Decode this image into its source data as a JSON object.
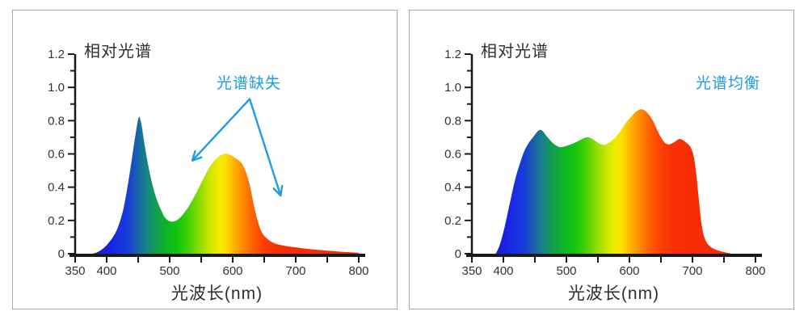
{
  "styles": {
    "annotation_color": "#1e9cea",
    "axis_color": "#1a1a1a",
    "tick_text_color": "#333333",
    "title_text_color": "#2e2e2e",
    "panel_border_color": "#a8a8a8",
    "background_color": "#ffffff"
  },
  "spectrum_gradient": [
    {
      "wl": 380,
      "color": "#2018c8"
    },
    {
      "wl": 410,
      "color": "#1826e6"
    },
    {
      "wl": 435,
      "color": "#1840d8"
    },
    {
      "wl": 452,
      "color": "#1a6a9c"
    },
    {
      "wl": 462,
      "color": "#16818c"
    },
    {
      "wl": 472,
      "color": "#159462"
    },
    {
      "wl": 485,
      "color": "#10a83c"
    },
    {
      "wl": 498,
      "color": "#0db81e"
    },
    {
      "wl": 512,
      "color": "#12c410"
    },
    {
      "wl": 526,
      "color": "#35ce06"
    },
    {
      "wl": 540,
      "color": "#6ed802"
    },
    {
      "wl": 554,
      "color": "#a8e000"
    },
    {
      "wl": 566,
      "color": "#d2e800"
    },
    {
      "wl": 578,
      "color": "#f0ec00"
    },
    {
      "wl": 588,
      "color": "#ffe000"
    },
    {
      "wl": 598,
      "color": "#ffc000"
    },
    {
      "wl": 608,
      "color": "#ffa000"
    },
    {
      "wl": 618,
      "color": "#ff8600"
    },
    {
      "wl": 630,
      "color": "#ff6600"
    },
    {
      "wl": 642,
      "color": "#ff4c00"
    },
    {
      "wl": 655,
      "color": "#fb3a02"
    },
    {
      "wl": 672,
      "color": "#f83004"
    },
    {
      "wl": 700,
      "color": "#f62c05"
    },
    {
      "wl": 800,
      "color": "#f52b06"
    }
  ],
  "chart_data": [
    {
      "type": "area",
      "title": "相对光谱",
      "xlabel": "光波长(nm)",
      "ylabel": "",
      "annotation": "光谱缺失",
      "xlim": [
        350,
        800
      ],
      "ylim": [
        0,
        1.2
      ],
      "xticks": [
        350,
        400,
        450,
        500,
        550,
        600,
        650,
        700,
        750,
        800
      ],
      "xtick_labels": [
        "350",
        "400",
        "",
        "500",
        "",
        "600",
        "",
        "700",
        "",
        "800"
      ],
      "ytick_values": [
        0,
        0.1,
        0.2,
        0.3,
        0.4,
        0.5,
        0.6,
        0.7,
        0.8,
        0.9,
        1.0,
        1.1,
        1.2
      ],
      "ytick_labels": [
        "0",
        "",
        "0.2",
        "",
        "0.4",
        "",
        "0.6",
        "",
        "0.8",
        "",
        "1.0",
        "",
        "1.2"
      ],
      "grid": false,
      "arrows": [
        {
          "from": [
            627,
            0.93
          ],
          "to": [
            536,
            0.56
          ]
        },
        {
          "from": [
            627,
            0.93
          ],
          "to": [
            676,
            0.35
          ]
        }
      ],
      "points": [
        [
          378,
          0
        ],
        [
          386,
          0.01
        ],
        [
          394,
          0.03
        ],
        [
          402,
          0.06
        ],
        [
          410,
          0.1
        ],
        [
          418,
          0.16
        ],
        [
          426,
          0.26
        ],
        [
          433,
          0.4
        ],
        [
          440,
          0.57
        ],
        [
          446,
          0.72
        ],
        [
          451,
          0.82
        ],
        [
          455,
          0.78
        ],
        [
          460,
          0.66
        ],
        [
          466,
          0.53
        ],
        [
          473,
          0.41
        ],
        [
          480,
          0.32
        ],
        [
          488,
          0.25
        ],
        [
          492,
          0.22
        ],
        [
          500,
          0.195
        ],
        [
          508,
          0.196
        ],
        [
          516,
          0.215
        ],
        [
          524,
          0.25
        ],
        [
          532,
          0.295
        ],
        [
          540,
          0.35
        ],
        [
          548,
          0.41
        ],
        [
          556,
          0.47
        ],
        [
          564,
          0.525
        ],
        [
          572,
          0.565
        ],
        [
          580,
          0.59
        ],
        [
          586,
          0.6
        ],
        [
          592,
          0.6
        ],
        [
          600,
          0.585
        ],
        [
          608,
          0.565
        ],
        [
          614,
          0.545
        ],
        [
          620,
          0.5
        ],
        [
          626,
          0.43
        ],
        [
          631,
          0.34
        ],
        [
          636,
          0.25
        ],
        [
          641,
          0.18
        ],
        [
          646,
          0.13
        ],
        [
          652,
          0.1
        ],
        [
          660,
          0.075
        ],
        [
          670,
          0.058
        ],
        [
          682,
          0.048
        ],
        [
          696,
          0.04
        ],
        [
          712,
          0.032
        ],
        [
          730,
          0.025
        ],
        [
          750,
          0.018
        ],
        [
          770,
          0.012
        ],
        [
          800,
          0.006
        ]
      ]
    },
    {
      "type": "area",
      "title": "相对光谱",
      "xlabel": "光波长(nm)",
      "ylabel": "",
      "annotation": "光谱均衡",
      "xlim": [
        350,
        800
      ],
      "ylim": [
        0,
        1.2
      ],
      "xticks": [
        350,
        400,
        450,
        500,
        550,
        600,
        650,
        700,
        750,
        800
      ],
      "xtick_labels": [
        "350",
        "400",
        "",
        "500",
        "",
        "600",
        "",
        "700",
        "",
        "800"
      ],
      "ytick_values": [
        0,
        0.1,
        0.2,
        0.3,
        0.4,
        0.5,
        0.6,
        0.7,
        0.8,
        0.9,
        1.0,
        1.1,
        1.2
      ],
      "ytick_labels": [
        "0",
        "",
        "0.2",
        "",
        "0.4",
        "",
        "0.6",
        "",
        "0.8",
        "",
        "1.0",
        "",
        "1.2"
      ],
      "grid": false,
      "arrows": [],
      "points": [
        [
          388,
          0
        ],
        [
          394,
          0.05
        ],
        [
          400,
          0.13
        ],
        [
          406,
          0.23
        ],
        [
          412,
          0.335
        ],
        [
          419,
          0.45
        ],
        [
          426,
          0.54
        ],
        [
          433,
          0.615
        ],
        [
          440,
          0.665
        ],
        [
          447,
          0.7
        ],
        [
          453,
          0.73
        ],
        [
          458,
          0.745
        ],
        [
          463,
          0.735
        ],
        [
          469,
          0.705
        ],
        [
          476,
          0.675
        ],
        [
          483,
          0.652
        ],
        [
          490,
          0.641
        ],
        [
          497,
          0.645
        ],
        [
          505,
          0.655
        ],
        [
          513,
          0.667
        ],
        [
          521,
          0.682
        ],
        [
          528,
          0.695
        ],
        [
          534,
          0.7
        ],
        [
          540,
          0.693
        ],
        [
          547,
          0.675
        ],
        [
          553,
          0.66
        ],
        [
          559,
          0.655
        ],
        [
          565,
          0.662
        ],
        [
          572,
          0.68
        ],
        [
          579,
          0.705
        ],
        [
          587,
          0.745
        ],
        [
          595,
          0.79
        ],
        [
          603,
          0.825
        ],
        [
          611,
          0.855
        ],
        [
          618,
          0.868
        ],
        [
          624,
          0.862
        ],
        [
          630,
          0.84
        ],
        [
          637,
          0.8
        ],
        [
          644,
          0.745
        ],
        [
          650,
          0.7
        ],
        [
          656,
          0.668
        ],
        [
          662,
          0.657
        ],
        [
          668,
          0.664
        ],
        [
          674,
          0.678
        ],
        [
          680,
          0.69
        ],
        [
          686,
          0.68
        ],
        [
          692,
          0.662
        ],
        [
          697,
          0.64
        ],
        [
          702,
          0.585
        ],
        [
          706,
          0.48
        ],
        [
          710,
          0.33
        ],
        [
          714,
          0.19
        ],
        [
          718,
          0.11
        ],
        [
          723,
          0.065
        ],
        [
          730,
          0.038
        ],
        [
          740,
          0.02
        ],
        [
          752,
          0.008
        ],
        [
          760,
          0.002
        ]
      ]
    }
  ]
}
